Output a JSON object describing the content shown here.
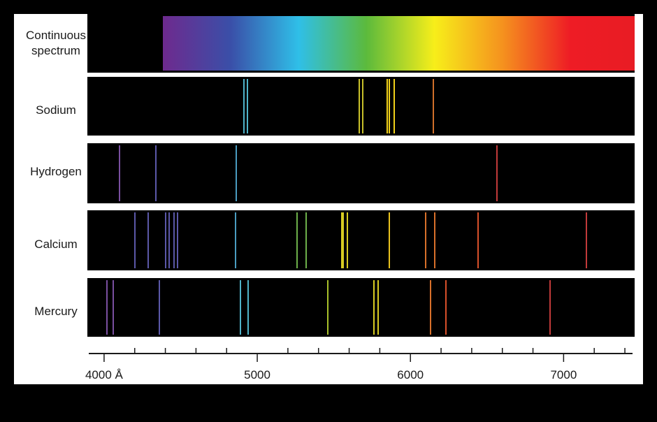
{
  "rows": [
    {
      "label": "Continuous spectrum",
      "type": "continuous"
    },
    {
      "label": "Sodium",
      "lines": [
        {
          "wl": 4915,
          "color": "#4fb3c9"
        },
        {
          "wl": 4935,
          "color": "#4fb3c9"
        },
        {
          "wl": 5665,
          "color": "#c8c02a"
        },
        {
          "wl": 5690,
          "color": "#c8c02a"
        },
        {
          "wl": 5850,
          "color": "#f2d21a"
        },
        {
          "wl": 5860,
          "color": "#f2d21a"
        },
        {
          "wl": 5895,
          "color": "#f2d21a"
        },
        {
          "wl": 6150,
          "color": "#d0702a"
        }
      ]
    },
    {
      "label": "Hydrogen",
      "lines": [
        {
          "wl": 4101,
          "color": "#7a4fa0"
        },
        {
          "wl": 4340,
          "color": "#5b58a8"
        },
        {
          "wl": 4861,
          "color": "#4a9cc0"
        },
        {
          "wl": 6563,
          "color": "#c23a3a"
        }
      ]
    },
    {
      "label": "Calcium",
      "lines": [
        {
          "wl": 4200,
          "color": "#5b58a8"
        },
        {
          "wl": 4290,
          "color": "#5b58a8"
        },
        {
          "wl": 4400,
          "color": "#5b58a8"
        },
        {
          "wl": 4425,
          "color": "#5b58a8"
        },
        {
          "wl": 4455,
          "color": "#5b58a8"
        },
        {
          "wl": 4480,
          "color": "#5b58a8"
        },
        {
          "wl": 4860,
          "color": "#4a9cc0"
        },
        {
          "wl": 5260,
          "color": "#6db04a"
        },
        {
          "wl": 5320,
          "color": "#6db04a"
        },
        {
          "wl": 5550,
          "color": "#d8cc22"
        },
        {
          "wl": 5560,
          "color": "#d8cc22"
        },
        {
          "wl": 5590,
          "color": "#d8cc22"
        },
        {
          "wl": 5860,
          "color": "#e8c21e"
        },
        {
          "wl": 6100,
          "color": "#d8702a"
        },
        {
          "wl": 6160,
          "color": "#d8702a"
        },
        {
          "wl": 6440,
          "color": "#d8502a"
        },
        {
          "wl": 7150,
          "color": "#c23a3a"
        }
      ]
    },
    {
      "label": "Mercury",
      "lines": [
        {
          "wl": 4020,
          "color": "#7a4fa0"
        },
        {
          "wl": 4060,
          "color": "#7a4fa0"
        },
        {
          "wl": 4360,
          "color": "#5b58a8"
        },
        {
          "wl": 4890,
          "color": "#4fb3c9"
        },
        {
          "wl": 4940,
          "color": "#4fb3c9"
        },
        {
          "wl": 5460,
          "color": "#a8c02a"
        },
        {
          "wl": 5760,
          "color": "#d8cc22"
        },
        {
          "wl": 5790,
          "color": "#d8cc22"
        },
        {
          "wl": 6130,
          "color": "#d8702a"
        },
        {
          "wl": 6230,
          "color": "#d8502a"
        },
        {
          "wl": 6910,
          "color": "#c23a3a"
        }
      ]
    }
  ],
  "axis": {
    "min": 3900,
    "max": 7450,
    "major_ticks": [
      4000,
      5000,
      6000,
      7000
    ],
    "tick_labels": [
      "4000 Å",
      "5000",
      "6000",
      "7000"
    ]
  },
  "colors": {
    "gradient": [
      "#6e2a8e",
      "#3a4fa8",
      "#2fbfe8",
      "#5cba3c",
      "#f7ee1a",
      "#f5921e",
      "#ee1c25",
      "#e81c24",
      "#5a0000"
    ]
  }
}
